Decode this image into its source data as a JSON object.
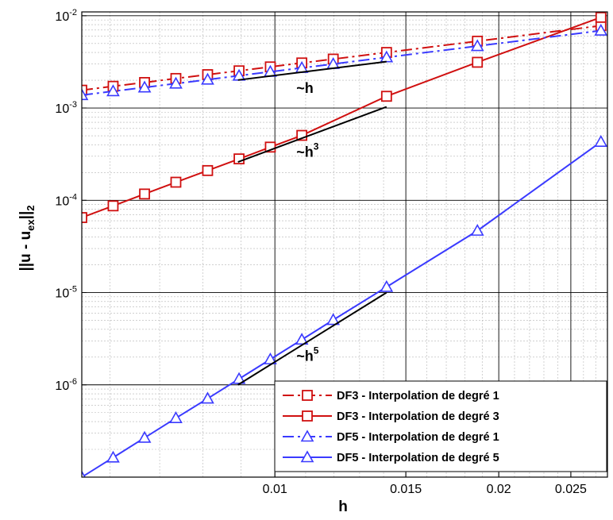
{
  "chart_data": {
    "type": "line",
    "title": "",
    "xlabel": "h",
    "ylabel": "||u - u_ex||_2",
    "ylabel_parts": {
      "norm_open": "||u - u",
      "subscript": "ex",
      "norm_close": "||",
      "norm_subscript": "2"
    },
    "x_scale": "log",
    "y_scale": "log",
    "xlim": [
      0.0055,
      0.028
    ],
    "ylim": [
      1e-07,
      0.011
    ],
    "x_ticks": [
      0.01,
      0.015,
      0.02,
      0.025
    ],
    "x_tick_labels": [
      "0.01",
      "0.015",
      "0.02",
      "0.025"
    ],
    "y_ticks": [
      1e-06,
      1e-05,
      0.0001,
      0.001,
      0.01
    ],
    "y_tick_labels": [
      {
        "base": "10",
        "exp": "-6"
      },
      {
        "base": "10",
        "exp": "-5"
      },
      {
        "base": "10",
        "exp": "-4"
      },
      {
        "base": "10",
        "exp": "-3"
      },
      {
        "base": "10",
        "exp": "-2"
      }
    ],
    "grid": true,
    "legend_position": "bottom-right",
    "colors": {
      "red": "#d01010",
      "blue": "#3a3aff",
      "black": "#000000"
    },
    "series": [
      {
        "name": "DF3 - Interpolation de degré 1",
        "color": "#d01010",
        "line_style": "dashdot",
        "marker": "square",
        "x": [
          0.0055,
          0.00606,
          0.00668,
          0.00736,
          0.00812,
          0.00895,
          0.00986,
          0.01087,
          0.01198,
          0.01413,
          0.01872,
          0.02744
        ],
        "y": [
          0.00156,
          0.00172,
          0.00189,
          0.00209,
          0.0023,
          0.00253,
          0.00279,
          0.00308,
          0.00339,
          0.004,
          0.0053,
          0.0078
        ]
      },
      {
        "name": "DF3 - Interpolation de degré 3",
        "color": "#d01010",
        "line_style": "solid",
        "marker": "square",
        "x": [
          0.0055,
          0.00606,
          0.00668,
          0.00736,
          0.00812,
          0.00895,
          0.00986,
          0.01087,
          0.01413,
          0.01872,
          0.02744
        ],
        "y": [
          6.5e-05,
          8.7e-05,
          0.000117,
          0.000157,
          0.00021,
          0.000281,
          0.000377,
          0.000505,
          0.00134,
          0.00313,
          0.0096
        ]
      },
      {
        "name": "DF5 - Interpolation de degré 1",
        "color": "#3a3aff",
        "line_style": "dashdot",
        "marker": "triangle",
        "x": [
          0.0055,
          0.00606,
          0.00668,
          0.00736,
          0.00812,
          0.00895,
          0.00986,
          0.01087,
          0.01198,
          0.01413,
          0.01872,
          0.02744
        ],
        "y": [
          0.00138,
          0.00152,
          0.00167,
          0.00184,
          0.00203,
          0.00224,
          0.00247,
          0.00272,
          0.003,
          0.00354,
          0.00469,
          0.0069
        ]
      },
      {
        "name": "DF5 - Interpolation de degré 5",
        "color": "#3a3aff",
        "line_style": "solid",
        "marker": "triangle",
        "x": [
          0.0055,
          0.00606,
          0.00668,
          0.00736,
          0.00812,
          0.00895,
          0.00986,
          0.01087,
          0.01198,
          0.01413,
          0.01872,
          0.02744
        ],
        "y": [
          1e-07,
          1.63e-07,
          2.67e-07,
          4.36e-07,
          7.1e-07,
          1.16e-06,
          1.89e-06,
          3.09e-06,
          5.05e-06,
          1.15e-05,
          4.68e-05,
          0.00043
        ]
      }
    ],
    "slope_guides": [
      {
        "label_base": "~h",
        "label_exp": "",
        "x": [
          0.00892,
          0.01413
        ],
        "y": [
          0.00201,
          0.00318
        ]
      },
      {
        "label_base": "~h",
        "label_exp": "3",
        "x": [
          0.00892,
          0.01413
        ],
        "y": [
          0.00026,
          0.00103
        ]
      },
      {
        "label_base": "~h",
        "label_exp": "5",
        "x": [
          0.00892,
          0.01413
        ],
        "y": [
          1e-06,
          1e-05
        ]
      }
    ]
  }
}
